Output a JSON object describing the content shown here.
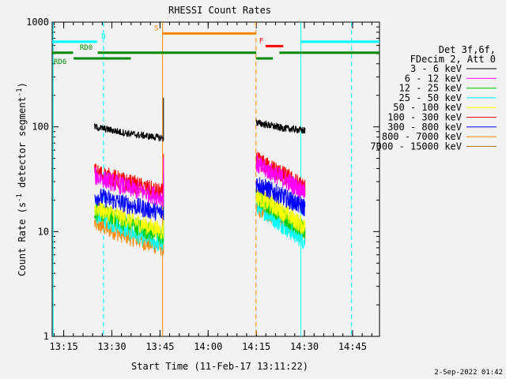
{
  "chart_data": {
    "type": "line",
    "title": "RHESSI Count Rates",
    "xlabel": "Start Time (11-Feb-17 13:11:22)",
    "ylabel_parts": [
      "Count Rate (s",
      "-1",
      " detector segment",
      "-1",
      ")"
    ],
    "yscale": "log",
    "ylim": [
      1,
      1000
    ],
    "xlim_min": [
      0,
      102
    ],
    "xticks": [
      {
        "min": 3.6,
        "label": "13:15"
      },
      {
        "min": 18.6,
        "label": "13:30"
      },
      {
        "min": 33.6,
        "label": "13:45"
      },
      {
        "min": 48.6,
        "label": "14:00"
      },
      {
        "min": 63.6,
        "label": "14:15"
      },
      {
        "min": 78.6,
        "label": "14:30"
      },
      {
        "min": 93.6,
        "label": "14:45"
      }
    ],
    "yticks": [
      {
        "value": 1,
        "label": "1"
      },
      {
        "value": 10,
        "label": "10"
      },
      {
        "value": 100,
        "label": "100"
      },
      {
        "value": 1000,
        "label": "1000"
      }
    ],
    "legend_header": [
      "Det 3f,6f,",
      "FDecim 2, Att 0"
    ],
    "series": [
      {
        "name": "3 - 6 keV",
        "color": "#000000",
        "seg1": [
          100,
          86,
          78
        ],
        "seg2": [
          110,
          98,
          92
        ]
      },
      {
        "name": "6 - 12 keV",
        "color": "#ff00ff",
        "seg1": [
          34,
          26,
          21
        ],
        "seg2": [
          44,
          33,
          24
        ]
      },
      {
        "name": "12 - 25 keV",
        "color": "#00cc00",
        "seg1": [
          16,
          12,
          9
        ],
        "seg2": [
          21,
          15,
          10
        ]
      },
      {
        "name": "25 - 50 keV",
        "color": "#00ffff",
        "seg1": [
          15,
          10,
          7.5
        ],
        "seg2": [
          18,
          12,
          8
        ]
      },
      {
        "name": "50 - 100 keV",
        "color": "#ffff00",
        "seg1": [
          17,
          13,
          10
        ],
        "seg2": [
          22,
          16,
          11
        ]
      },
      {
        "name": "100 - 300 keV",
        "color": "#ff0000",
        "seg1": [
          37,
          29,
          23
        ],
        "seg2": [
          48,
          36,
          26
        ]
      },
      {
        "name": "300 - 800 keV",
        "color": "#0000ff",
        "seg1": [
          22,
          18,
          15
        ],
        "seg2": [
          29,
          22,
          17
        ]
      },
      {
        "name": "800 - 7000 keV",
        "color": "#ff8800",
        "seg1": [
          12,
          9,
          7
        ],
        "seg2": [
          17,
          13,
          9
        ]
      },
      {
        "name": "7000 - 15000 keV",
        "color": "#aa7722",
        "seg1": [],
        "seg2": []
      }
    ],
    "data_windows_min": [
      [
        13.2,
        34.7
      ],
      [
        63.6,
        78.8
      ]
    ],
    "spike_min": 34.7,
    "flags": [
      {
        "label": "N",
        "color": "#00ffff",
        "segments": [
          [
            0,
            14
          ]
        ],
        "level": 650,
        "label_min": 15.3
      },
      {
        "label": "S",
        "color": "#ff8800",
        "segments": [
          [
            34.4,
            63.5
          ]
        ],
        "level": 780,
        "label_min": 31.8
      },
      {
        "label": "F",
        "color": "#ff0000",
        "segments": [
          [
            66.5,
            72
          ]
        ],
        "level": 590,
        "label_min": 64.5
      },
      {
        "label": "RD0",
        "color": "#008800",
        "segments": [
          [
            0,
            6.5
          ],
          [
            14.2,
            63.6
          ],
          [
            70.8,
            102
          ]
        ],
        "level": 510,
        "label_min": 8.6
      },
      {
        "label": "RD6",
        "color": "#008800",
        "segments": [
          [
            6.7,
            24.5
          ],
          [
            63.6,
            68.8
          ]
        ],
        "level": 450,
        "label_min": 0.5
      },
      {
        "label": "",
        "color": "#00ffff",
        "segments": [
          [
            77.5,
            102
          ]
        ],
        "level": 650,
        "label_min": null
      }
    ],
    "vlines": [
      {
        "min": 0.3,
        "color": "#00ffff",
        "dash": false
      },
      {
        "min": 16.0,
        "color": "#00ffff",
        "dash": true
      },
      {
        "min": 34.4,
        "color": "#ff8800",
        "dash": false
      },
      {
        "min": 63.5,
        "color": "#ff8800",
        "dash": true
      },
      {
        "min": 77.5,
        "color": "#00ffff",
        "dash": false
      },
      {
        "min": 93.3,
        "color": "#00ffff",
        "dash": true
      }
    ],
    "footer": "2-Sep-2022 01:42"
  }
}
